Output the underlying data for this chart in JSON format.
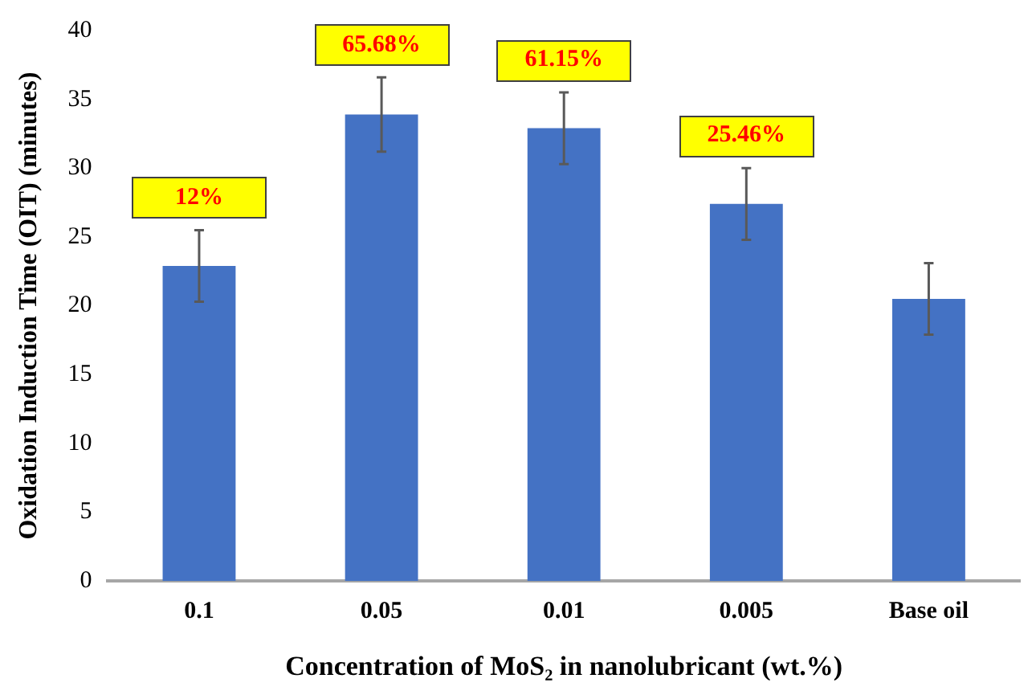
{
  "chart_data": {
    "type": "bar",
    "xlabel": "Concentration of MoS₂ in nanolubricant (wt.%)",
    "ylabel": "Oxidation Induction Time (OIT) (minutes)",
    "categories": [
      "0.1",
      "0.05",
      "0.01",
      "0.005",
      "Base oil"
    ],
    "values": [
      22.9,
      33.9,
      32.9,
      27.4,
      20.5
    ],
    "errors": [
      2.6,
      2.7,
      2.6,
      2.6,
      2.6
    ],
    "color": "#4472c4",
    "ylim": [
      0,
      40
    ],
    "yticks": [
      0,
      5,
      10,
      15,
      20,
      25,
      30,
      35,
      40
    ],
    "grid": false,
    "legend": false,
    "annotations": [
      "12%",
      "65.68%",
      "61.15%",
      "25.46%"
    ]
  }
}
